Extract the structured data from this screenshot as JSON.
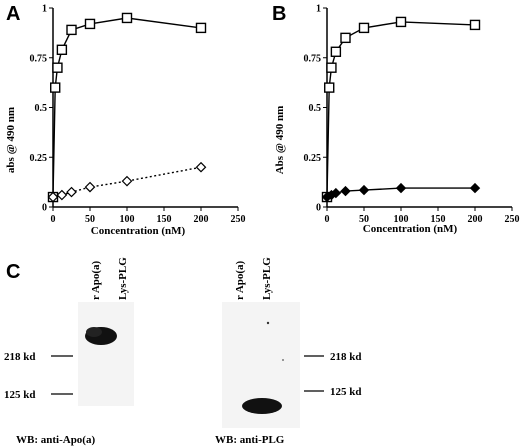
{
  "chart_data": [
    {
      "panel": "A",
      "type": "line",
      "xlabel": "Concentration (nM)",
      "ylabel": "abs @ 490 nm",
      "xlim": [
        0,
        250
      ],
      "ylim": [
        0,
        1
      ],
      "x_ticks": [
        0,
        50,
        100,
        150,
        200,
        250
      ],
      "y_ticks": [
        0,
        0.25,
        0.5,
        0.75,
        1
      ],
      "y_tick_labels": [
        "0",
        "0.25",
        "0.5",
        "0.75",
        "1"
      ],
      "grid": false,
      "series": [
        {
          "marker": "open-square",
          "line": "solid",
          "x": [
            0,
            3,
            6,
            12,
            25,
            50,
            100,
            200
          ],
          "y": [
            0.05,
            0.6,
            0.7,
            0.79,
            0.89,
            0.92,
            0.95,
            0.9
          ]
        },
        {
          "marker": "open-diamond",
          "line": "dotted",
          "x": [
            0,
            12,
            25,
            50,
            100,
            200
          ],
          "y": [
            0.05,
            0.06,
            0.075,
            0.1,
            0.13,
            0.2
          ]
        }
      ]
    },
    {
      "panel": "B",
      "type": "line",
      "xlabel": "Concentration (nM)",
      "ylabel": "Abs @ 490 nm",
      "xlim": [
        0,
        250
      ],
      "ylim": [
        0,
        1
      ],
      "x_ticks": [
        0,
        50,
        100,
        150,
        200,
        250
      ],
      "y_ticks": [
        0,
        0.25,
        0.5,
        0.75,
        1
      ],
      "y_tick_labels": [
        "0",
        "0.25",
        "0.5",
        "0.75",
        "1"
      ],
      "grid": false,
      "series": [
        {
          "marker": "open-square",
          "line": "solid",
          "x": [
            0,
            3,
            6,
            12,
            25,
            50,
            100,
            200
          ],
          "y": [
            0.05,
            0.6,
            0.7,
            0.78,
            0.85,
            0.9,
            0.93,
            0.915
          ]
        },
        {
          "marker": "filled-diamond",
          "line": "solid",
          "x": [
            0,
            6,
            12,
            25,
            50,
            100,
            200
          ],
          "y": [
            0.05,
            0.06,
            0.07,
            0.08,
            0.085,
            0.095,
            0.095
          ]
        }
      ]
    }
  ],
  "panel_c": {
    "letter": "C",
    "blots": [
      {
        "lane_labels": [
          "r Apo(a)",
          "Lys-PLG"
        ],
        "markers": [
          "218 kd",
          "125 kd"
        ],
        "caption": "WB: anti-Apo(a)"
      },
      {
        "lane_labels": [
          "r Apo(a)",
          "Lys-PLG"
        ],
        "markers": [
          "218 kd",
          "125 kd"
        ],
        "caption": "WB: anti-PLG"
      }
    ]
  },
  "colors": {
    "ink": "#000000",
    "background": "#ffffff",
    "blot_background": "#f4f4f4",
    "band": "#111111"
  }
}
